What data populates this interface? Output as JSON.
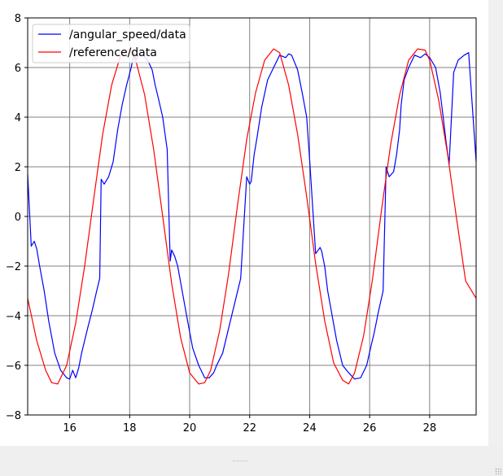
{
  "chart_data": {
    "type": "line",
    "xlim": [
      14.6,
      29.55
    ],
    "ylim": [
      -8,
      8
    ],
    "xticks": [
      16,
      18,
      20,
      22,
      24,
      26,
      28
    ],
    "yticks": [
      -8,
      -6,
      -4,
      -2,
      0,
      2,
      4,
      6,
      8
    ],
    "grid": true,
    "legend_position": "upper-left",
    "series": [
      {
        "name": "/angular_speed/data",
        "color": "#0000ff",
        "x": [
          14.6,
          14.72,
          14.82,
          14.9,
          15.0,
          15.15,
          15.3,
          15.5,
          15.7,
          15.9,
          16.0,
          16.1,
          16.2,
          16.3,
          16.4,
          16.5,
          16.6,
          16.75,
          16.9,
          17.0,
          17.05,
          17.15,
          17.3,
          17.45,
          17.6,
          17.75,
          17.9,
          18.05,
          18.15,
          18.2,
          18.3,
          18.45,
          18.6,
          18.75,
          18.85,
          18.95,
          19.1,
          19.25,
          19.35,
          19.4,
          19.5,
          19.6,
          19.75,
          19.9,
          20.1,
          20.3,
          20.5,
          20.65,
          20.8,
          20.9,
          21.1,
          21.3,
          21.5,
          21.7,
          21.9,
          22.0,
          22.05,
          22.15,
          22.25,
          22.4,
          22.6,
          22.8,
          23.0,
          23.2,
          23.3,
          23.4,
          23.6,
          23.75,
          23.9,
          24.0,
          24.2,
          24.35,
          24.4,
          24.5,
          24.6,
          24.75,
          24.9,
          25.1,
          25.3,
          25.5,
          25.7,
          25.9,
          26.05,
          26.15,
          26.3,
          26.45,
          26.55,
          26.65,
          26.8,
          26.9,
          27.0,
          27.05,
          27.15,
          27.3,
          27.5,
          27.7,
          27.85,
          28.0,
          28.2,
          28.35,
          28.45,
          28.55,
          28.65,
          28.8,
          28.95,
          29.15,
          29.3,
          29.55
        ],
        "values": [
          1.7,
          -1.2,
          -1.0,
          -1.3,
          -2.0,
          -3.0,
          -4.2,
          -5.5,
          -6.2,
          -6.5,
          -6.55,
          -6.2,
          -6.5,
          -6.1,
          -5.5,
          -5.0,
          -4.5,
          -3.8,
          -3.0,
          -2.5,
          1.5,
          1.3,
          1.6,
          2.2,
          3.5,
          4.5,
          5.3,
          6.0,
          6.6,
          6.3,
          6.5,
          6.5,
          6.3,
          5.9,
          5.3,
          4.8,
          4.0,
          2.7,
          -1.8,
          -1.35,
          -1.6,
          -2.0,
          -3.0,
          -4.0,
          -5.3,
          -6.0,
          -6.5,
          -6.5,
          -6.3,
          -6.0,
          -5.5,
          -4.5,
          -3.5,
          -2.5,
          1.6,
          1.3,
          1.4,
          2.5,
          3.2,
          4.4,
          5.5,
          6.0,
          6.5,
          6.4,
          6.55,
          6.5,
          5.9,
          5.0,
          4.0,
          2.3,
          -1.5,
          -1.25,
          -1.4,
          -2.0,
          -3.0,
          -4.0,
          -5.0,
          -6.0,
          -6.3,
          -6.55,
          -6.5,
          -6.0,
          -5.2,
          -4.7,
          -3.8,
          -3.0,
          2.0,
          1.6,
          1.8,
          2.5,
          3.5,
          4.5,
          5.5,
          6.0,
          6.5,
          6.4,
          6.55,
          6.4,
          6.0,
          5.0,
          4.0,
          3.0,
          2.1,
          5.8,
          6.3,
          6.5,
          6.6,
          2.2
        ]
      },
      {
        "name": "/reference/data",
        "color": "#ff0000",
        "x": [
          14.6,
          14.9,
          15.2,
          15.4,
          15.6,
          15.9,
          16.2,
          16.5,
          16.8,
          17.1,
          17.4,
          17.7,
          18.0,
          18.2,
          18.5,
          18.8,
          19.1,
          19.4,
          19.7,
          20.0,
          20.3,
          20.5,
          20.7,
          21.0,
          21.3,
          21.6,
          21.9,
          22.2,
          22.5,
          22.8,
          23.0,
          23.3,
          23.6,
          23.9,
          24.2,
          24.5,
          24.8,
          25.1,
          25.3,
          25.5,
          25.8,
          26.1,
          26.4,
          26.7,
          27.0,
          27.3,
          27.6,
          27.85,
          28.0,
          28.3,
          28.6,
          28.9,
          29.2,
          29.55
        ],
        "values": [
          -3.3,
          -5.0,
          -6.2,
          -6.7,
          -6.75,
          -6.0,
          -4.3,
          -2.0,
          0.7,
          3.3,
          5.3,
          6.5,
          6.75,
          6.3,
          4.9,
          2.7,
          0.0,
          -2.7,
          -4.9,
          -6.3,
          -6.75,
          -6.7,
          -6.2,
          -4.6,
          -2.3,
          0.5,
          3.1,
          5.0,
          6.3,
          6.75,
          6.6,
          5.3,
          3.3,
          0.8,
          -1.9,
          -4.2,
          -5.9,
          -6.6,
          -6.75,
          -6.3,
          -4.8,
          -2.5,
          0.3,
          2.9,
          4.9,
          6.3,
          6.75,
          6.7,
          6.3,
          4.7,
          2.5,
          -0.1,
          -2.6,
          -3.3
        ]
      }
    ]
  },
  "colors": {
    "grid": "#808080",
    "axes": "#000000",
    "legend_border": "#cccccc"
  }
}
